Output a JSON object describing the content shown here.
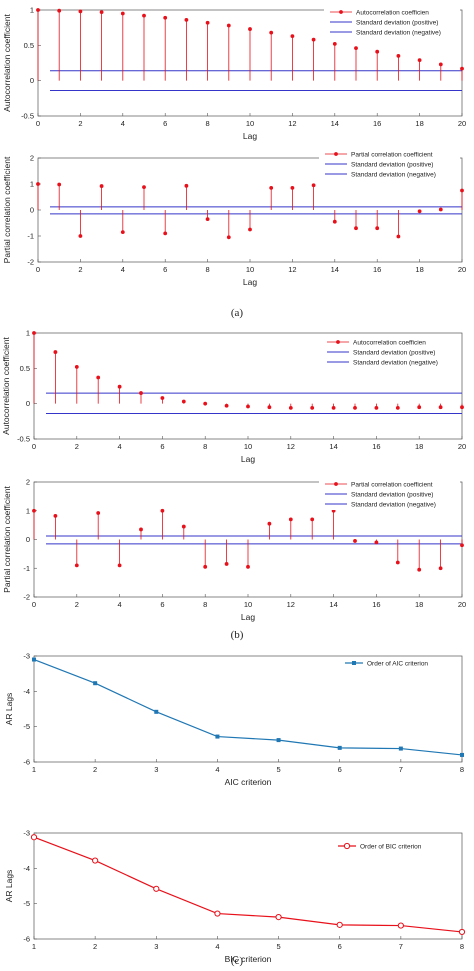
{
  "captions": [
    "(a)",
    "(b)",
    "(c)"
  ],
  "colors": {
    "stem": "#e8101a",
    "sd": "#3535c9",
    "aic": "#1f77b4",
    "bic": "#e8101a"
  },
  "chart_data": [
    {
      "type": "stem",
      "xlabel": "Lag",
      "ylabel": "Autocorrelation coefficient",
      "xlim": [
        0,
        20
      ],
      "ylim": [
        -0.5,
        1
      ],
      "xticks": [
        "0",
        "2",
        "4",
        "6",
        "8",
        "10",
        "12",
        "14",
        "16",
        "18",
        "20"
      ],
      "yticks": [
        "-0.5",
        "0",
        "0.5",
        "1"
      ],
      "legend": [
        "Autocorrelation coefficien",
        "Standard deviation (positive)",
        "Standard deviation (negative)"
      ],
      "x": [
        0,
        1,
        2,
        3,
        4,
        5,
        6,
        7,
        8,
        9,
        10,
        11,
        12,
        13,
        14,
        15,
        16,
        17,
        18,
        19,
        20
      ],
      "values": [
        1.0,
        0.99,
        0.98,
        0.97,
        0.95,
        0.92,
        0.89,
        0.86,
        0.82,
        0.78,
        0.73,
        0.68,
        0.63,
        0.58,
        0.52,
        0.46,
        0.41,
        0.35,
        0.29,
        0.23,
        0.17
      ],
      "sd_positive": 0.14,
      "sd_negative": -0.14
    },
    {
      "type": "stem",
      "xlabel": "Lag",
      "ylabel": "Partial correlation coefficient",
      "xlim": [
        0,
        20
      ],
      "ylim": [
        -2,
        2
      ],
      "xticks": [
        "0",
        "2",
        "4",
        "6",
        "8",
        "10",
        "12",
        "14",
        "16",
        "18",
        "20"
      ],
      "yticks": [
        "-2",
        "-1",
        "0",
        "1",
        "2"
      ],
      "legend": [
        "Partial correlation coefficient",
        "Standard deviation (positive)",
        "Standard deviation (negative)"
      ],
      "x": [
        0,
        1,
        2,
        3,
        4,
        5,
        6,
        7,
        8,
        9,
        10,
        11,
        12,
        13,
        14,
        15,
        16,
        17,
        18,
        19,
        20
      ],
      "values": [
        1.0,
        0.98,
        -1.0,
        0.92,
        -0.85,
        0.88,
        -0.9,
        0.93,
        -0.35,
        -1.05,
        -0.75,
        0.85,
        0.85,
        0.95,
        -0.45,
        -0.7,
        -0.7,
        -1.02,
        -0.05,
        0.02,
        0.75
      ],
      "sd_positive": 0.12,
      "sd_negative": -0.15
    },
    {
      "type": "stem",
      "xlabel": "Lag",
      "ylabel": "Autocorrelation coefficient",
      "xlim": [
        0,
        20
      ],
      "ylim": [
        -0.5,
        1
      ],
      "xticks": [
        "0",
        "2",
        "4",
        "6",
        "8",
        "10",
        "12",
        "14",
        "16",
        "18",
        "20"
      ],
      "yticks": [
        "-0.5",
        "0",
        "0.5",
        "1"
      ],
      "legend": [
        "Autocorrelation coefficien",
        "Standard deviation (positive)",
        "Standard deviation (negative)"
      ],
      "x": [
        0,
        1,
        2,
        3,
        4,
        5,
        6,
        7,
        8,
        9,
        10,
        11,
        12,
        13,
        14,
        15,
        16,
        17,
        18,
        19,
        20
      ],
      "values": [
        1.0,
        0.73,
        0.52,
        0.37,
        0.24,
        0.15,
        0.08,
        0.03,
        0.0,
        -0.03,
        -0.04,
        -0.05,
        -0.06,
        -0.06,
        -0.06,
        -0.06,
        -0.06,
        -0.06,
        -0.05,
        -0.05,
        -0.05
      ],
      "sd_positive": 0.15,
      "sd_negative": -0.14
    },
    {
      "type": "stem",
      "xlabel": "Lag",
      "ylabel": "Partial correlation coefficient",
      "xlim": [
        0,
        20
      ],
      "ylim": [
        -2,
        2
      ],
      "xticks": [
        "0",
        "2",
        "4",
        "6",
        "8",
        "10",
        "12",
        "14",
        "16",
        "18",
        "20"
      ],
      "yticks": [
        "-2",
        "-1",
        "0",
        "1",
        "2"
      ],
      "legend": [
        "Partial correlation coefficient",
        "Standard deviation (positive)",
        "Standard deviation (negative)"
      ],
      "x": [
        0,
        1,
        2,
        3,
        4,
        5,
        6,
        7,
        8,
        9,
        10,
        11,
        12,
        13,
        14,
        15,
        16,
        17,
        18,
        19,
        20
      ],
      "values": [
        1.0,
        0.82,
        -0.9,
        0.92,
        -0.9,
        0.35,
        1.0,
        0.45,
        -0.95,
        -0.85,
        -0.95,
        0.55,
        0.7,
        0.7,
        1.0,
        -0.05,
        -0.1,
        -0.8,
        -1.05,
        -1.0,
        -0.2
      ],
      "sd_positive": 0.12,
      "sd_negative": -0.15
    },
    {
      "type": "line",
      "xlabel": "AIC criterion",
      "ylabel": "AR Lags",
      "xlim": [
        1,
        8
      ],
      "ylim": [
        -6,
        -3
      ],
      "xticks": [
        "1",
        "2",
        "3",
        "4",
        "5",
        "6",
        "7",
        "8"
      ],
      "yticks": [
        "-6",
        "-5",
        "-4",
        "-3"
      ],
      "legend": [
        "Order of AIC criterion"
      ],
      "x": [
        1,
        2,
        3,
        4,
        5,
        6,
        7,
        8
      ],
      "values": [
        -3.1,
        -3.77,
        -4.58,
        -5.28,
        -5.38,
        -5.6,
        -5.62,
        -5.8
      ]
    },
    {
      "type": "line",
      "xlabel": "BIC criterion",
      "ylabel": "AR Lags",
      "xlim": [
        1,
        8
      ],
      "ylim": [
        -6,
        -3
      ],
      "xticks": [
        "1",
        "2",
        "3",
        "4",
        "5",
        "6",
        "7",
        "8"
      ],
      "yticks": [
        "-6",
        "-5",
        "-4",
        "-3"
      ],
      "legend": [
        "Order of BIC criterion"
      ],
      "x": [
        1,
        2,
        3,
        4,
        5,
        6,
        7,
        8
      ],
      "values": [
        -3.12,
        -3.78,
        -4.58,
        -5.28,
        -5.38,
        -5.6,
        -5.62,
        -5.8
      ]
    }
  ]
}
